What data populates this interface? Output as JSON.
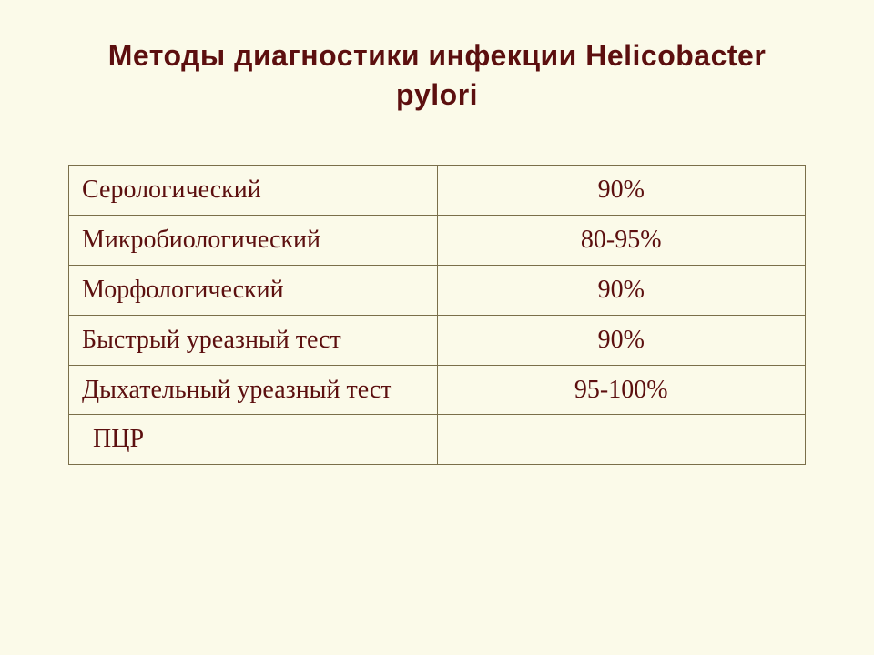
{
  "title": "Методы диагностики инфекции Helicobacter pylori",
  "table": {
    "rows": [
      {
        "method": "Серологический",
        "value": "90%",
        "indent": false
      },
      {
        "method": "Микробиологический",
        "value": "80-95%",
        "indent": false
      },
      {
        "method": "Морфологический",
        "value": "90%",
        "indent": false
      },
      {
        "method": "Быстрый уреазный тест",
        "value": "90%",
        "indent": false
      },
      {
        "method": "Дыхательный уреазный тест",
        "value": "95-100%",
        "indent": false
      },
      {
        "method": "ПЦР",
        "value": "",
        "indent": true
      }
    ],
    "border_color": "#7a6f4a",
    "text_color": "#5c0f0f",
    "background_color": "#fbfae9",
    "font_size": 28,
    "title_font_size": 32,
    "column_widths": [
      "50%",
      "50%"
    ]
  }
}
